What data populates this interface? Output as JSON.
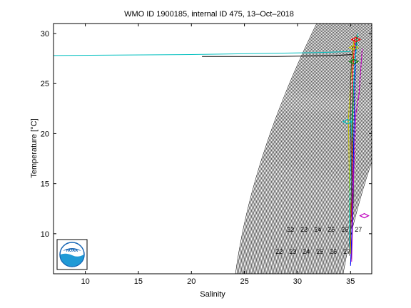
{
  "chart_data": {
    "type": "line",
    "title": "WMO ID 1900185, internal ID 475, 13–Oct–2018",
    "xlabel": "Salinity",
    "ylabel": "Temperature [°C]",
    "xlim": [
      7,
      37
    ],
    "ylim": [
      6,
      31
    ],
    "xticks": [
      10,
      15,
      20,
      25,
      30,
      35
    ],
    "yticks": [
      10,
      15,
      20,
      25,
      30
    ],
    "grid": false,
    "legend": "none",
    "density_isolines": {
      "color": "#000000",
      "sigma_min": 19,
      "sigma_max": 27,
      "step": 0.1
    },
    "isoline_labels": [
      "22",
      "22",
      "23",
      "23",
      "24",
      "24",
      "25",
      "25",
      "26",
      "26",
      "27",
      "27"
    ],
    "series": [
      {
        "color": "#00bfbf",
        "x": [
          7.0,
          20.0,
          32.0,
          35.0
        ],
        "y": [
          27.8,
          27.9,
          28.1,
          28.2
        ]
      },
      {
        "color": "#000000",
        "x": [
          21.0,
          28.0,
          33.5,
          35.2
        ],
        "y": [
          27.7,
          27.7,
          27.8,
          27.9
        ]
      },
      {
        "color": "#ff0000",
        "x": [
          35.4,
          35.2,
          35.1,
          35.2,
          35.0,
          35.1
        ],
        "y": [
          29.5,
          26.0,
          20.0,
          15.0,
          10.0,
          7.5
        ]
      },
      {
        "color": "#008000",
        "x": [
          35.6,
          35.3,
          35.2,
          35.3,
          35.1,
          35.0
        ],
        "y": [
          29.8,
          25.0,
          21.0,
          14.0,
          9.0,
          7.0
        ]
      },
      {
        "color": "#0000ff",
        "x": [
          35.5,
          35.4,
          35.3,
          35.2,
          35.1,
          35.0
        ],
        "y": [
          29.0,
          24.5,
          19.0,
          13.5,
          9.5,
          6.8
        ]
      },
      {
        "color": "#bf00bf",
        "x": [
          36.1,
          35.8,
          35.5,
          35.3,
          35.2,
          35.1
        ],
        "y": [
          28.5,
          24.0,
          22.0,
          16.0,
          11.0,
          7.2
        ]
      },
      {
        "color": "#bfbf00",
        "x": [
          35.3,
          35.1,
          34.8,
          34.9,
          35.0,
          35.0
        ],
        "y": [
          29.2,
          26.5,
          21.5,
          14.5,
          12.0,
          8.0
        ]
      },
      {
        "color": "#00bfbf",
        "x": [
          35.7,
          35.4,
          35.1,
          35.0,
          34.9,
          34.9
        ],
        "y": [
          30.0,
          27.0,
          21.2,
          17.0,
          12.5,
          8.5
        ]
      },
      {
        "color": "#404040",
        "x": [
          35.2,
          35.0,
          35.0,
          35.1,
          35.0,
          34.9
        ],
        "y": [
          28.8,
          25.5,
          20.5,
          15.5,
          10.5,
          7.8
        ]
      }
    ],
    "markers": [
      {
        "color": "#00bfbf",
        "x": 34.7,
        "y": 21.2
      },
      {
        "color": "#bfbf00",
        "x": 35.3,
        "y": 28.6
      },
      {
        "color": "#ff0000",
        "x": 35.5,
        "y": 29.4
      },
      {
        "color": "#008000",
        "x": 35.3,
        "y": 27.2
      },
      {
        "color": "#bf00bf",
        "x": 36.3,
        "y": 11.8
      }
    ]
  },
  "logo": {
    "text": "NOAA",
    "color": "#1464b4"
  }
}
